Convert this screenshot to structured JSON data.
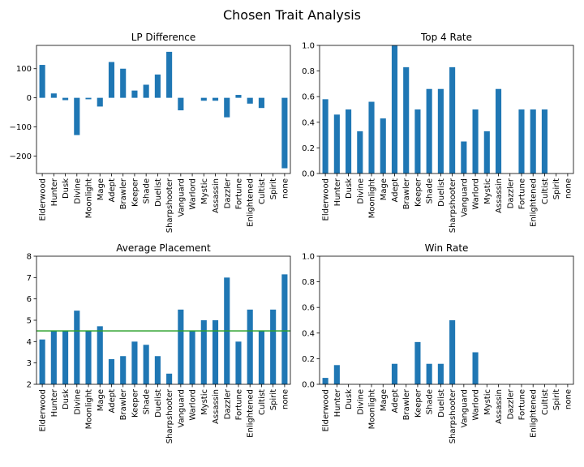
{
  "figure": {
    "title": "Chosen Trait Analysis"
  },
  "colors": {
    "bar": "#1f77b4",
    "reference_line": "#2ca02c"
  },
  "chart_data": [
    {
      "type": "bar",
      "title": "LP Difference",
      "categories": [
        "Elderwood",
        "Hunter",
        "Dusk",
        "Divine",
        "Moonlight",
        "Mage",
        "Adept",
        "Brawler",
        "Keeper",
        "Shade",
        "Duelist",
        "Sharpshooter",
        "Vanguard",
        "Warlord",
        "Mystic",
        "Assassin",
        "Dazzler",
        "Fortune",
        "Enlightened",
        "Cultist",
        "Spirit",
        "none"
      ],
      "values": [
        113,
        15,
        -8,
        -128,
        -5,
        -30,
        123,
        100,
        25,
        45,
        80,
        158,
        -43,
        0,
        -10,
        -10,
        -67,
        10,
        -20,
        -35,
        0,
        -242
      ],
      "ylim": [
        -260,
        180
      ],
      "yticks": [
        -200,
        -100,
        0,
        100
      ],
      "xlabel": "",
      "ylabel": ""
    },
    {
      "type": "bar",
      "title": "Top 4 Rate",
      "categories": [
        "Elderwood",
        "Hunter",
        "Dusk",
        "Divine",
        "Moonlight",
        "Mage",
        "Adept",
        "Brawler",
        "Keeper",
        "Shade",
        "Duelist",
        "Sharpshooter",
        "Vanguard",
        "Warlord",
        "Mystic",
        "Assassin",
        "Dazzler",
        "Fortune",
        "Enlightened",
        "Cultist",
        "Spirit",
        "none"
      ],
      "values": [
        0.58,
        0.46,
        0.5,
        0.33,
        0.56,
        0.43,
        1.0,
        0.83,
        0.5,
        0.66,
        0.66,
        0.83,
        0.25,
        0.5,
        0.33,
        0.66,
        0,
        0.5,
        0.5,
        0.5,
        0,
        0
      ],
      "ylim": [
        0,
        1.0
      ],
      "yticks": [
        0.0,
        0.2,
        0.4,
        0.6,
        0.8,
        1.0
      ],
      "xlabel": "",
      "ylabel": ""
    },
    {
      "type": "bar",
      "title": "Average Placement",
      "categories": [
        "Elderwood",
        "Hunter",
        "Dusk",
        "Divine",
        "Moonlight",
        "Mage",
        "Adept",
        "Brawler",
        "Keeper",
        "Shade",
        "Duelist",
        "Sharpshooter",
        "Vanguard",
        "Warlord",
        "Mystic",
        "Assassin",
        "Dazzler",
        "Fortune",
        "Enlightened",
        "Cultist",
        "Spirit",
        "none"
      ],
      "values": [
        4.1,
        4.5,
        4.5,
        5.45,
        4.5,
        4.72,
        3.18,
        3.32,
        4.0,
        3.85,
        3.32,
        2.5,
        5.5,
        4.5,
        5.0,
        5.0,
        7.0,
        4.0,
        5.5,
        4.5,
        5.5,
        7.15
      ],
      "ylim": [
        2,
        8
      ],
      "yticks": [
        2,
        3,
        4,
        5,
        6,
        7,
        8
      ],
      "hline": 4.5,
      "xlabel": "",
      "ylabel": ""
    },
    {
      "type": "bar",
      "title": "Win Rate",
      "categories": [
        "Elderwood",
        "Hunter",
        "Dusk",
        "Divine",
        "Moonlight",
        "Mage",
        "Adept",
        "Brawler",
        "Keeper",
        "Shade",
        "Duelist",
        "Sharpshooter",
        "Vanguard",
        "Warlord",
        "Mystic",
        "Assassin",
        "Dazzler",
        "Fortune",
        "Enlightened",
        "Cultist",
        "Spirit",
        "none"
      ],
      "values": [
        0.05,
        0.15,
        0,
        0,
        0,
        0,
        0.16,
        0,
        0.33,
        0.16,
        0.16,
        0.5,
        0,
        0.25,
        0,
        0,
        0,
        0,
        0,
        0,
        0,
        0
      ],
      "ylim": [
        0,
        1.0
      ],
      "yticks": [
        0.0,
        0.2,
        0.4,
        0.6,
        0.8,
        1.0
      ],
      "xlabel": "",
      "ylabel": ""
    }
  ]
}
